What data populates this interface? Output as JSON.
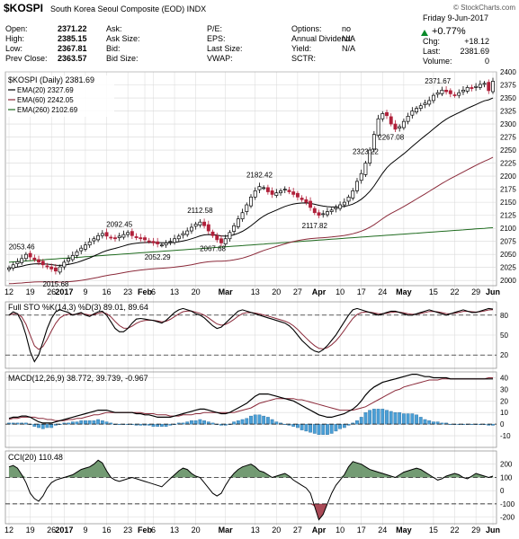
{
  "header": {
    "symbol": "$KOSPI",
    "name": "South Korea Seoul Composite (EOD)",
    "exchange": "INDX",
    "credit": "© StockCharts.com",
    "date": "Friday  9-Jun-2017",
    "change_pct": "+0.77%",
    "up_arrow": "▲",
    "rows": [
      [
        "Open:",
        "2371.22",
        "Ask:",
        "",
        "P/E:",
        "",
        "Options:",
        "no"
      ],
      [
        "High:",
        "2385.15",
        "Ask Size:",
        "",
        "EPS:",
        "",
        "Annual Dividend:",
        "N/A"
      ],
      [
        "Low:",
        "2367.81",
        "Bid:",
        "",
        "Last Size:",
        "",
        "Yield:",
        "N/A"
      ],
      [
        "Prev Close:",
        "2363.57",
        "Bid Size:",
        "",
        "VWAP:",
        "",
        "SCTR:",
        ""
      ]
    ],
    "right_rows": [
      [
        "Chg:",
        "+18.12"
      ],
      [
        "Last:",
        "2381.69"
      ],
      [
        "Volume:",
        "0"
      ]
    ]
  },
  "colors": {
    "up": "#000000",
    "down": "#b0203a",
    "ema20": "#000000",
    "ema60": "#8b2a3a",
    "ema260": "#1f6b1f",
    "macd_hist": "#4a9fd6",
    "cci_fill": "#5b8a5b",
    "cci_neg": "#9b2a3a",
    "grid": "#d8d8d8"
  },
  "chart_data": [
    {
      "type": "candlestick",
      "legend": [
        "$KOSPI (Daily) 2381.69",
        "EMA(20) 2327.69",
        "EMA(60) 2242.05",
        "EMA(260) 2102.69"
      ],
      "ylim": [
        1990,
        2400
      ],
      "yticks": [
        2000,
        2025,
        2050,
        2075,
        2100,
        2125,
        2150,
        2175,
        2200,
        2225,
        2250,
        2275,
        2300,
        2325,
        2350,
        2375,
        2400
      ],
      "annotations": [
        {
          "text": "2053.46",
          "i": 3
        },
        {
          "text": "2015.68",
          "i": 11
        },
        {
          "text": "2092.45",
          "i": 26
        },
        {
          "text": "2052.29",
          "i": 35
        },
        {
          "text": "2112.58",
          "i": 45
        },
        {
          "text": "2067.68",
          "i": 48
        },
        {
          "text": "2182.42",
          "i": 59
        },
        {
          "text": "2117.82",
          "i": 72
        },
        {
          "text": "2323.22",
          "i": 84
        },
        {
          "text": "2267.08",
          "i": 90
        },
        {
          "text": "2371.67",
          "i": 101
        }
      ],
      "x_labels": [
        {
          "text": "12",
          "i": 0
        },
        {
          "text": "19",
          "i": 5
        },
        {
          "text": "26",
          "i": 10
        },
        {
          "text": "2017",
          "i": 13,
          "bold": true
        },
        {
          "text": "9",
          "i": 18
        },
        {
          "text": "16",
          "i": 23
        },
        {
          "text": "23",
          "i": 28
        },
        {
          "text": "Feb",
          "i": 32,
          "bold": true
        },
        {
          "text": "6",
          "i": 34
        },
        {
          "text": "13",
          "i": 39
        },
        {
          "text": "20",
          "i": 44
        },
        {
          "text": "Mar",
          "i": 51,
          "bold": true
        },
        {
          "text": "13",
          "i": 58
        },
        {
          "text": "20",
          "i": 63
        },
        {
          "text": "27",
          "i": 68
        },
        {
          "text": "Apr",
          "i": 73,
          "bold": true
        },
        {
          "text": "10",
          "i": 78
        },
        {
          "text": "17",
          "i": 83
        },
        {
          "text": "24",
          "i": 88
        },
        {
          "text": "May",
          "i": 93,
          "bold": true
        },
        {
          "text": "15",
          "i": 100
        },
        {
          "text": "22",
          "i": 105
        },
        {
          "text": "29",
          "i": 110
        },
        {
          "text": "Jun",
          "i": 114,
          "bold": true
        }
      ],
      "close": [
        2024,
        2030,
        2036,
        2042,
        2050,
        2045,
        2040,
        2035,
        2030,
        2026,
        2022,
        2018,
        2026,
        2035,
        2042,
        2048,
        2055,
        2062,
        2068,
        2074,
        2080,
        2086,
        2090,
        2085,
        2082,
        2080,
        2085,
        2088,
        2092,
        2086,
        2082,
        2080,
        2078,
        2075,
        2072,
        2070,
        2068,
        2072,
        2075,
        2080,
        2085,
        2090,
        2095,
        2102,
        2108,
        2112,
        2105,
        2095,
        2086,
        2078,
        2072,
        2080,
        2092,
        2105,
        2118,
        2130,
        2145,
        2160,
        2172,
        2180,
        2178,
        2170,
        2165,
        2168,
        2172,
        2175,
        2170,
        2165,
        2160,
        2155,
        2150,
        2140,
        2130,
        2125,
        2128,
        2132,
        2135,
        2140,
        2145,
        2150,
        2160,
        2172,
        2190,
        2205,
        2225,
        2250,
        2280,
        2310,
        2320,
        2316,
        2300,
        2290,
        2295,
        2305,
        2315,
        2325,
        2330,
        2335,
        2340,
        2345,
        2355,
        2360,
        2365,
        2362,
        2358,
        2355,
        2360,
        2365,
        2370,
        2368,
        2372,
        2376,
        2378,
        2364,
        2382
      ],
      "high_low_pad": 9
    },
    {
      "type": "line",
      "legend": "Full STO %K(14,3) %D(3) 89.01, 89.64",
      "ylim": [
        0,
        100
      ],
      "yticks": [
        20,
        50,
        80
      ],
      "k": [
        80,
        85,
        82,
        70,
        50,
        25,
        10,
        20,
        40,
        60,
        75,
        85,
        88,
        86,
        84,
        80,
        82,
        84,
        80,
        78,
        82,
        85,
        86,
        80,
        70,
        60,
        55,
        55,
        60,
        68,
        74,
        75,
        74,
        73,
        72,
        70,
        68,
        72,
        78,
        84,
        88,
        90,
        88,
        86,
        82,
        80,
        76,
        70,
        64,
        60,
        62,
        68,
        74,
        80,
        86,
        88,
        86,
        84,
        82,
        80,
        78,
        76,
        74,
        72,
        70,
        68,
        64,
        58,
        50,
        42,
        36,
        30,
        26,
        24,
        28,
        34,
        42,
        50,
        60,
        70,
        80,
        88,
        90,
        88,
        86,
        84,
        82,
        80,
        82,
        84,
        86,
        86,
        84,
        82,
        80,
        80,
        82,
        84,
        86,
        88,
        86,
        84,
        82,
        80,
        82,
        84,
        86,
        88,
        86,
        84,
        84,
        86,
        88,
        90,
        89
      ]
    },
    {
      "type": "line+bar",
      "legend": "MACD(12,26,9) 38.772, 39.739, -0.967",
      "ylim": [
        -20,
        45
      ],
      "yticks": [
        -10,
        0,
        10,
        20,
        30,
        40
      ],
      "macd": [
        5,
        6,
        6,
        7,
        7,
        6,
        4,
        2,
        1,
        1,
        1,
        2,
        3,
        4,
        5,
        6,
        7,
        8,
        9,
        10,
        11,
        12,
        12,
        12,
        11,
        10,
        10,
        10,
        10,
        10,
        9,
        9,
        8,
        8,
        7,
        6,
        6,
        6,
        6,
        7,
        8,
        9,
        10,
        11,
        12,
        13,
        13,
        12,
        11,
        10,
        9,
        9,
        10,
        12,
        14,
        16,
        18,
        21,
        24,
        26,
        26,
        26,
        25,
        24,
        23,
        22,
        21,
        20,
        18,
        16,
        14,
        12,
        10,
        8,
        7,
        6,
        6,
        7,
        8,
        9,
        11,
        13,
        16,
        20,
        25,
        29,
        32,
        34,
        36,
        37,
        38,
        39,
        40,
        41,
        42,
        43,
        43,
        42,
        41,
        41,
        40,
        40,
        40,
        40,
        39,
        39,
        39,
        39,
        39,
        39,
        39,
        39,
        39,
        39,
        39
      ],
      "signal": [
        4,
        5,
        5,
        6,
        6,
        6,
        6,
        5,
        5,
        4,
        4,
        3,
        3,
        3,
        4,
        4,
        5,
        5,
        6,
        7,
        8,
        8,
        9,
        10,
        10,
        10,
        10,
        10,
        10,
        10,
        10,
        10,
        9,
        9,
        9,
        8,
        8,
        8,
        7,
        7,
        7,
        8,
        8,
        8,
        9,
        9,
        10,
        10,
        10,
        10,
        10,
        10,
        10,
        10,
        11,
        12,
        13,
        14,
        16,
        18,
        19,
        20,
        21,
        22,
        22,
        22,
        22,
        22,
        21,
        21,
        20,
        19,
        18,
        17,
        16,
        15,
        14,
        13,
        12,
        12,
        12,
        12,
        13,
        14,
        15,
        17,
        19,
        21,
        23,
        25,
        27,
        29,
        30,
        32,
        33,
        34,
        35,
        36,
        37,
        38,
        38,
        38,
        39,
        39,
        39,
        39,
        39,
        39,
        39,
        39,
        39,
        39,
        39,
        40,
        40
      ]
    },
    {
      "type": "area",
      "legend": "CCI(20) 110.48",
      "ylim": [
        -250,
        300
      ],
      "yticks": [
        -200,
        -100,
        0,
        100,
        200
      ],
      "cci": [
        180,
        190,
        170,
        120,
        60,
        -20,
        -60,
        -80,
        -40,
        20,
        60,
        80,
        90,
        100,
        110,
        120,
        140,
        160,
        170,
        180,
        200,
        230,
        210,
        150,
        100,
        80,
        70,
        80,
        90,
        100,
        90,
        80,
        70,
        60,
        50,
        40,
        30,
        60,
        90,
        120,
        150,
        170,
        160,
        130,
        110,
        100,
        60,
        20,
        -20,
        -40,
        -20,
        40,
        90,
        130,
        160,
        180,
        190,
        200,
        180,
        150,
        140,
        120,
        100,
        110,
        120,
        130,
        110,
        80,
        60,
        40,
        20,
        -20,
        -120,
        -220,
        -180,
        -100,
        -20,
        40,
        80,
        120,
        180,
        220,
        210,
        200,
        180,
        160,
        150,
        140,
        130,
        120,
        110,
        100,
        120,
        140,
        150,
        160,
        170,
        160,
        140,
        120,
        100,
        80,
        90,
        110,
        120,
        130,
        120,
        100,
        90,
        110,
        130,
        120,
        110,
        100,
        110
      ]
    }
  ]
}
